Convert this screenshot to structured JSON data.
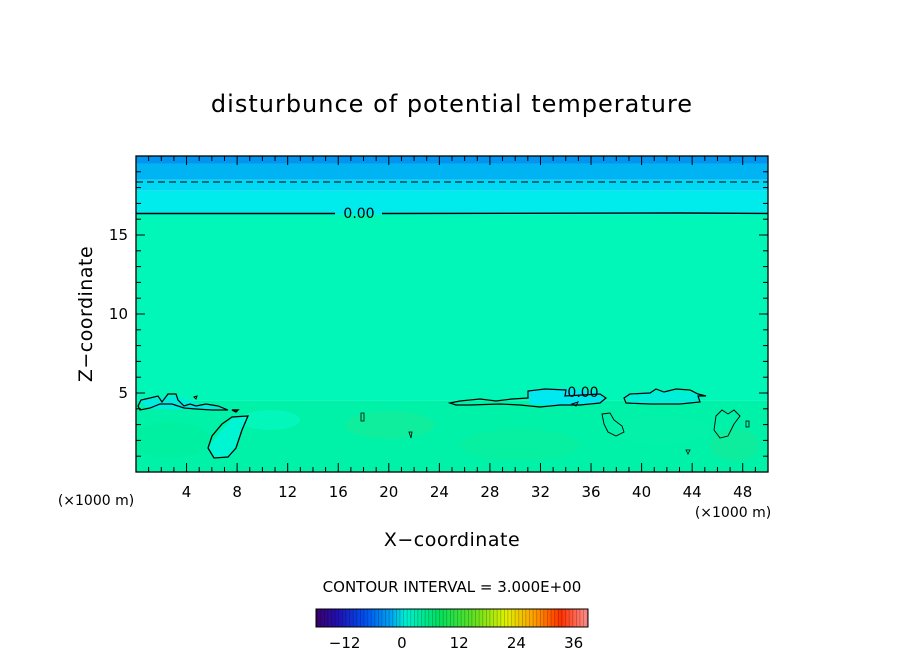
{
  "chart_data": {
    "type": "heatmap",
    "title": "disturbunce of potential temperature",
    "xlabel": "X−coordinate",
    "ylabel": "Z−coordinate",
    "x_unit": "(×1000 m)",
    "y_unit": "(×1000 m)",
    "xlim": [
      0,
      50
    ],
    "ylim": [
      0,
      20
    ],
    "x_ticks": [
      4,
      8,
      12,
      16,
      20,
      24,
      28,
      32,
      36,
      40,
      44,
      48
    ],
    "y_ticks": [
      5,
      10,
      15
    ],
    "contour_interval_text": "CONTOUR INTERVAL = 3.000E+00",
    "colorbar": {
      "min": -18,
      "max": 39,
      "ticks": [
        -12,
        0,
        12,
        24,
        36
      ],
      "tick_labels": [
        "−12",
        "0",
        "12",
        "24",
        "36"
      ]
    },
    "background_bands": [
      {
        "z_from": 0.0,
        "z_to": 4.5,
        "value": 1.5,
        "color": "#00f2a8"
      },
      {
        "z_from": 4.5,
        "z_to": 16.3,
        "value": 0.0,
        "color": "#00f7b8"
      },
      {
        "z_from": 16.3,
        "z_to": 17.8,
        "value": -2.0,
        "color": "#00ecec"
      },
      {
        "z_from": 17.8,
        "z_to": 18.5,
        "value": -3.5,
        "color": "#00d8f4"
      },
      {
        "z_from": 18.5,
        "z_to": 19.5,
        "value": -5.0,
        "color": "#00b4f4"
      },
      {
        "z_from": 19.5,
        "z_to": 20.0,
        "value": -6.0,
        "color": "#0096f0"
      }
    ],
    "contour_lines": [
      {
        "level": 0.0,
        "style": "solid",
        "label": "0.00",
        "z": 16.3
      },
      {
        "level": -3.0,
        "style": "dashed",
        "z": 18.4
      }
    ],
    "contour_labels": [
      {
        "text": "0.00",
        "x": 15.5,
        "z": 16.3
      },
      {
        "text": "0.00",
        "x": 35.5,
        "z": 5.0
      }
    ]
  }
}
